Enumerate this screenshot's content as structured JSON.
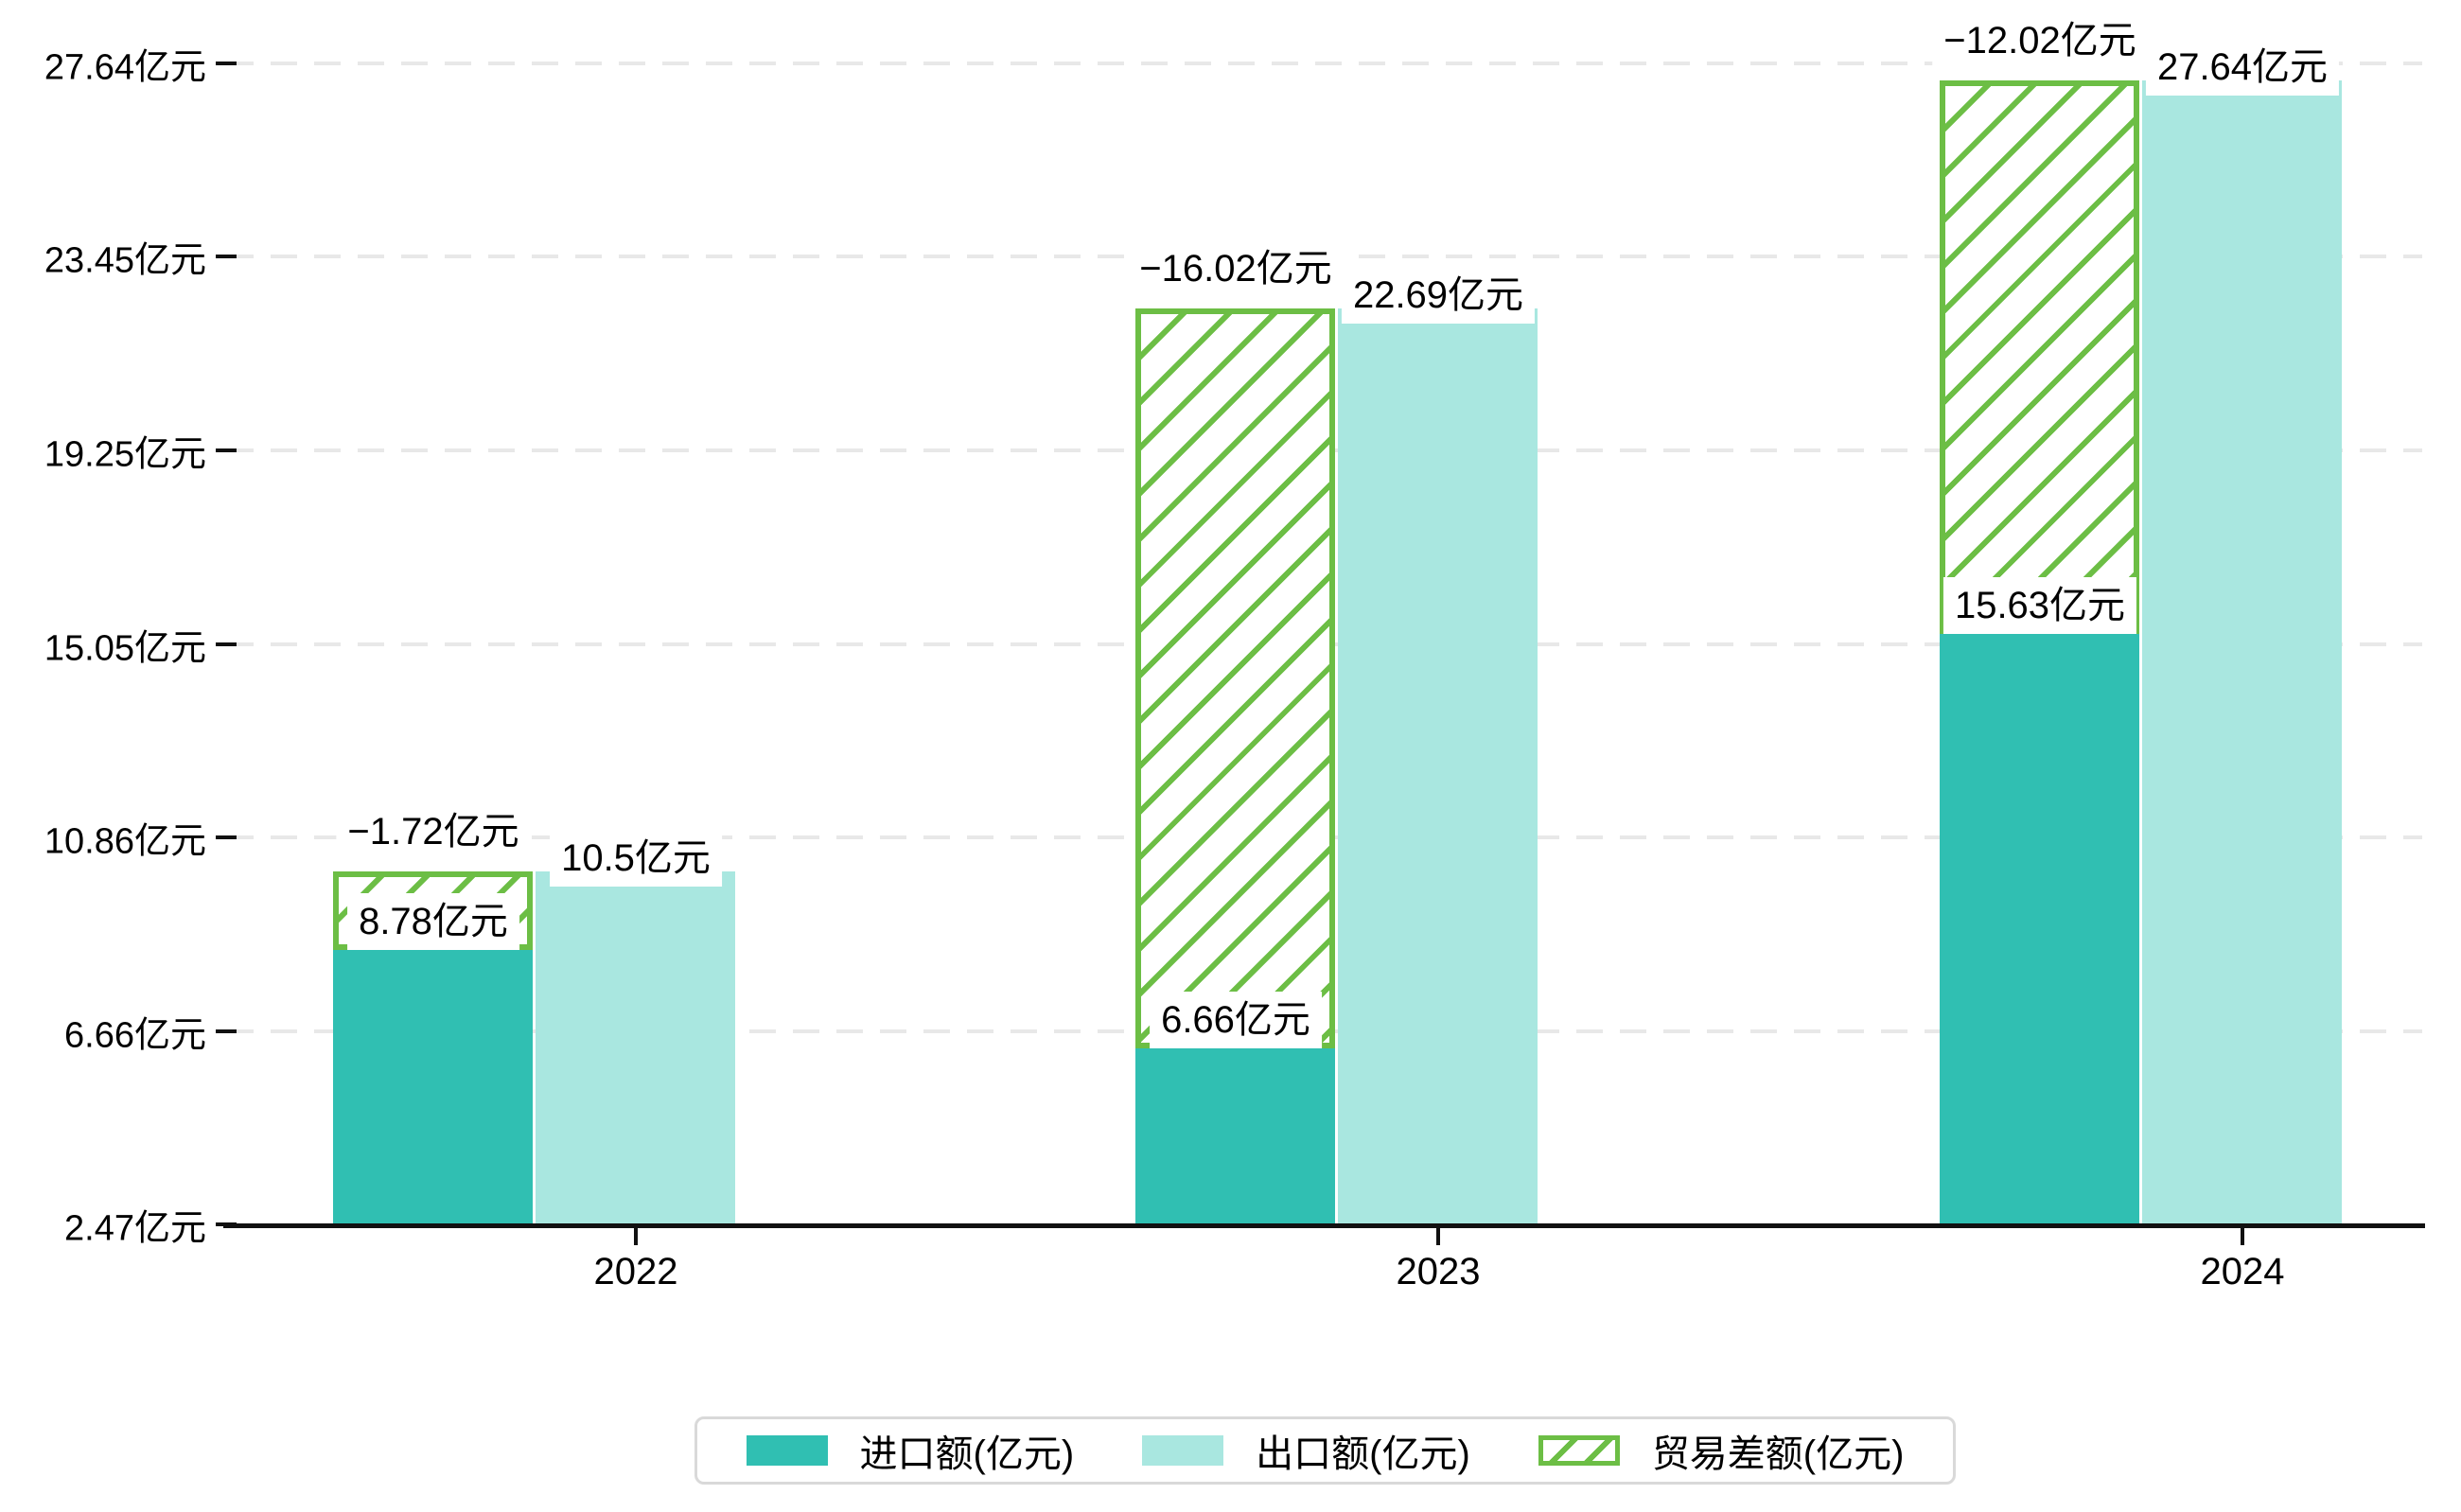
{
  "colors": {
    "import": "#30bfb2",
    "export": "#a9e7e0",
    "balance": "#6cbe45",
    "axis": "#111111",
    "grid": "#e8e8e8",
    "label_text": "#000000",
    "background": "#ffffff",
    "legend_border": "#d9d9d9"
  },
  "chart_data": {
    "type": "bar",
    "title": "",
    "xlabel": "",
    "ylabel": "",
    "categories": [
      "2022",
      "2023",
      "2024"
    ],
    "series": [
      {
        "name": "进口额(亿元)",
        "style": "solid",
        "color": "#30bfb2",
        "values": [
          8.78,
          6.66,
          15.63
        ],
        "point_labels": [
          "8.78亿元",
          "6.66亿元",
          "15.63亿元"
        ]
      },
      {
        "name": "出口额(亿元)",
        "style": "solid",
        "color": "#a9e7e0",
        "values": [
          10.5,
          22.69,
          27.64
        ],
        "point_labels": [
          "10.5亿元",
          "22.69亿元",
          "27.64亿元"
        ]
      },
      {
        "name": "贸易差额(亿元)",
        "style": "hatched",
        "color": "#6cbe45",
        "values": [
          -1.72,
          -16.02,
          -12.02
        ],
        "point_labels": [
          "−1.72亿元",
          "−16.02亿元",
          "−12.02亿元"
        ]
      }
    ],
    "yticks": {
      "values": [
        2.47,
        6.66,
        10.86,
        15.05,
        19.25,
        23.45,
        27.64
      ],
      "labels": [
        "2.47亿元",
        "6.66亿元",
        "10.86亿元",
        "15.05亿元",
        "19.25亿元",
        "23.45亿元",
        "27.64亿元"
      ]
    },
    "ylim": [
      2.47,
      27.64
    ],
    "grid": "horizontal-dashed",
    "legend_position": "bottom"
  }
}
